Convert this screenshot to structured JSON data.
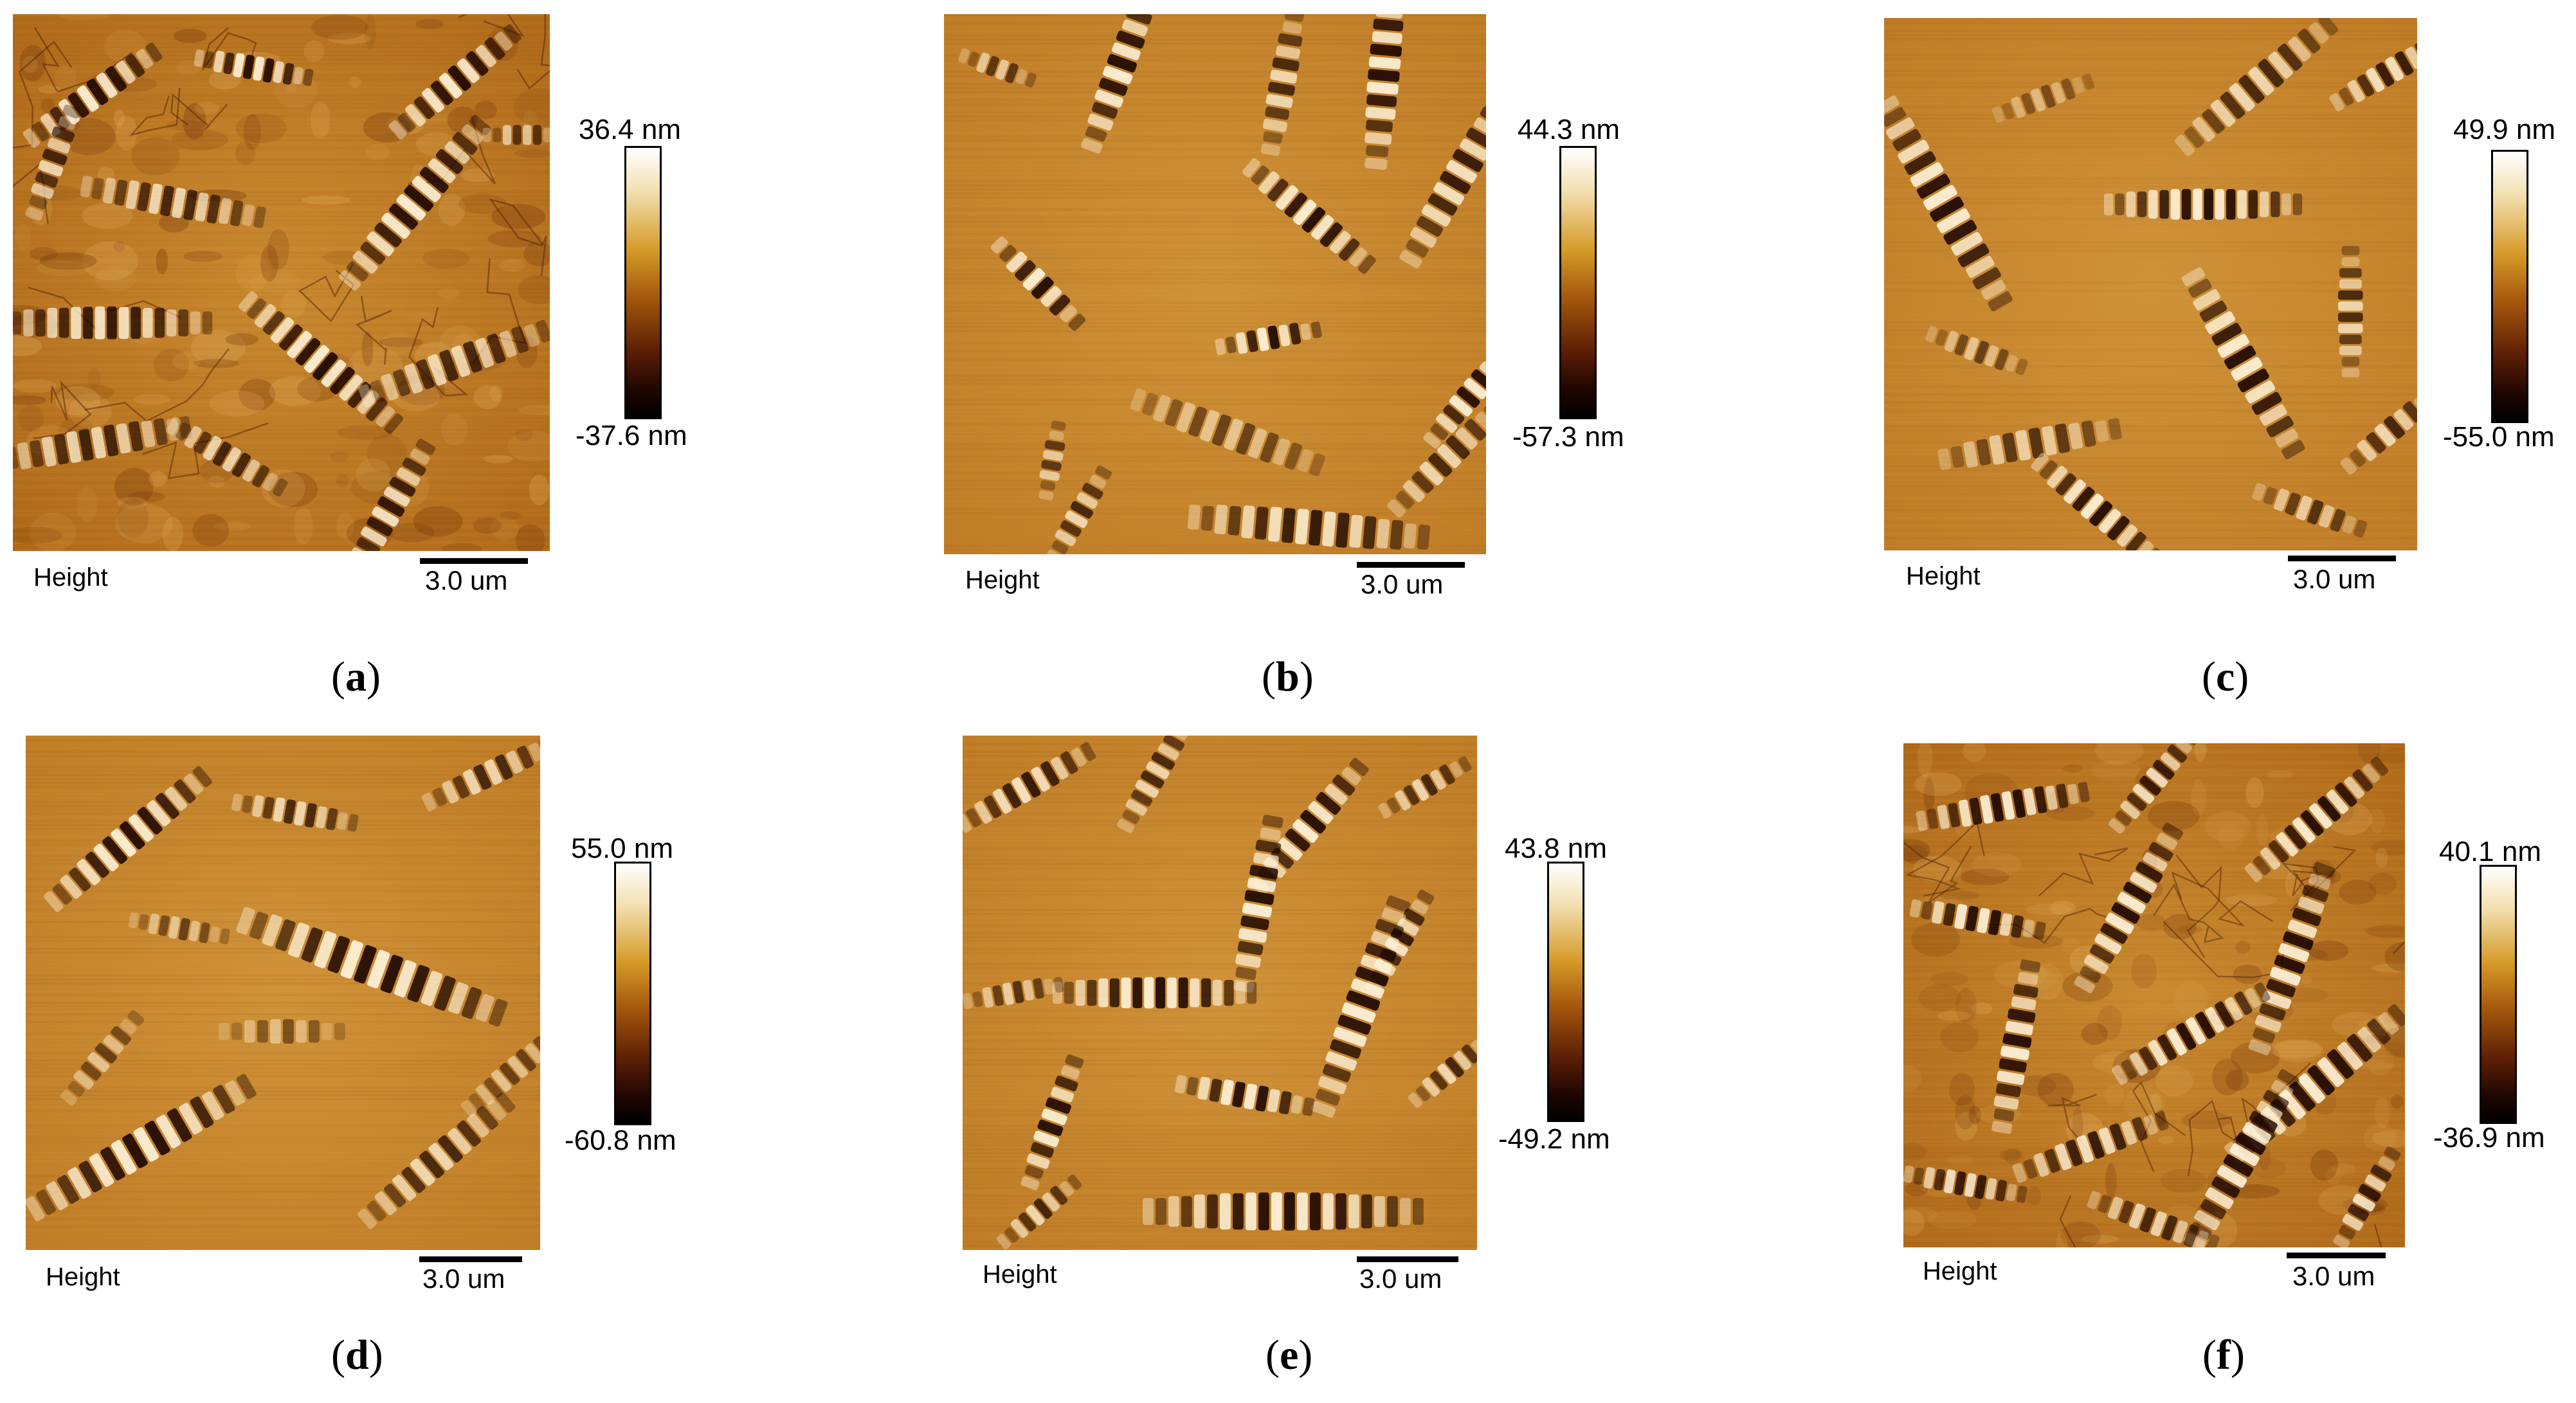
{
  "panels": [
    {
      "id": "a",
      "caption": "a",
      "max": "36.4 nm",
      "min": "-37.6 nm",
      "height_label": "Height",
      "scale": "3.0 um",
      "texture": "rough, dense stripe features, grain boundary network"
    },
    {
      "id": "b",
      "caption": "b",
      "max": "44.3 nm",
      "min": "-57.3 nm",
      "height_label": "Height",
      "scale": "3.0 um",
      "texture": "smooth, lighter background with stripe features"
    },
    {
      "id": "c",
      "caption": "c",
      "max": "49.9 nm",
      "min": "-55.0 nm",
      "height_label": "Height",
      "scale": "3.0 um",
      "texture": "smooth with horizontal scan lines and stripe features"
    },
    {
      "id": "d",
      "caption": "d",
      "max": "55.0 nm",
      "min": "-60.8 nm",
      "height_label": "Height",
      "scale": "3.0 um",
      "texture": "smooth with few large stripe features"
    },
    {
      "id": "e",
      "caption": "e",
      "max": "43.8 nm",
      "min": "-49.2 nm",
      "height_label": "Height",
      "scale": "3.0 um",
      "texture": "smooth with many stripe features"
    },
    {
      "id": "f",
      "caption": "f",
      "max": "40.1 nm",
      "min": "-36.9 nm",
      "height_label": "Height",
      "scale": "3.0 um",
      "texture": "rough, dense stripe features"
    }
  ],
  "colors": {
    "background": "#c27f26",
    "highlight": "#fff6e0",
    "shadow": "#1a0500"
  }
}
